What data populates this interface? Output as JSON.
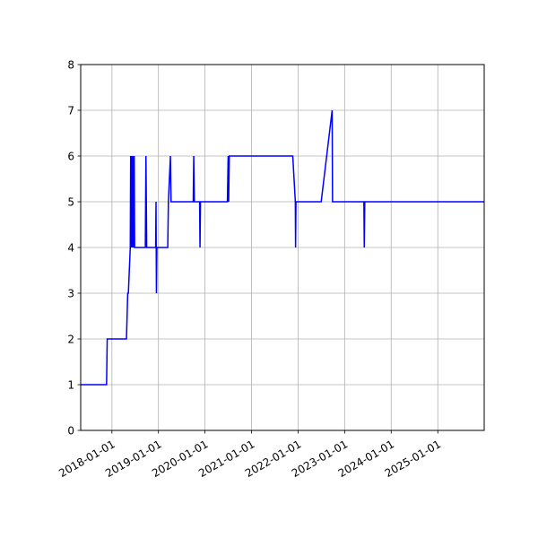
{
  "chart_data": {
    "type": "line",
    "title": "",
    "xlabel": "",
    "ylabel": "",
    "x_axis_type": "date",
    "xlim": [
      "2017-05-01",
      "2025-12-31"
    ],
    "ylim": [
      0,
      8
    ],
    "grid": true,
    "legend": "none",
    "line_color": "#0000ff",
    "grid_color": "#b0b0b0",
    "x_ticks": [
      {
        "value": "2018-01-01",
        "label": "2018-01-01"
      },
      {
        "value": "2019-01-01",
        "label": "2019-01-01"
      },
      {
        "value": "2020-01-01",
        "label": "2020-01-01"
      },
      {
        "value": "2021-01-01",
        "label": "2021-01-01"
      },
      {
        "value": "2022-01-01",
        "label": "2022-01-01"
      },
      {
        "value": "2023-01-01",
        "label": "2023-01-01"
      },
      {
        "value": "2024-01-01",
        "label": "2024-01-01"
      },
      {
        "value": "2025-01-01",
        "label": "2025-01-01"
      }
    ],
    "y_ticks": [
      {
        "value": 0,
        "label": "0"
      },
      {
        "value": 1,
        "label": "1"
      },
      {
        "value": 2,
        "label": "2"
      },
      {
        "value": 3,
        "label": "3"
      },
      {
        "value": 4,
        "label": "4"
      },
      {
        "value": 5,
        "label": "5"
      },
      {
        "value": 6,
        "label": "6"
      },
      {
        "value": 7,
        "label": "7"
      },
      {
        "value": 8,
        "label": "8"
      }
    ],
    "series": [
      {
        "color": "#0000ff",
        "x": [
          "2017-05-01",
          "2017-11-20",
          "2017-11-25",
          "2018-04-25",
          "2018-05-05",
          "2018-05-10",
          "2018-05-25",
          "2018-05-28",
          "2018-06-01",
          "2018-06-04",
          "2018-06-08",
          "2018-06-11",
          "2018-06-15",
          "2018-06-18",
          "2018-06-22",
          "2018-06-25",
          "2018-06-28",
          "2018-07-01",
          "2018-09-20",
          "2018-09-25",
          "2018-10-01",
          "2018-12-10",
          "2018-12-13",
          "2018-12-16",
          "2018-12-20",
          "2018-12-23",
          "2019-03-15",
          "2019-03-20",
          "2019-04-05",
          "2019-04-10",
          "2019-10-01",
          "2019-10-05",
          "2019-10-10",
          "2019-11-20",
          "2019-11-23",
          "2019-11-27",
          "2019-11-30",
          "2020-06-25",
          "2020-07-01",
          "2020-07-05",
          "2020-07-10",
          "2021-11-20",
          "2021-12-10",
          "2021-12-12",
          "2021-12-15",
          "2022-07-01",
          "2022-09-25",
          "2022-09-28",
          "2023-06-01",
          "2023-06-04",
          "2023-06-08",
          "2023-06-12",
          "2025-12-31"
        ],
        "y": [
          1,
          1,
          2,
          2,
          3,
          3,
          4,
          6,
          4,
          6,
          4,
          6,
          4,
          6,
          4,
          6,
          4,
          4,
          4,
          6,
          4,
          4,
          5,
          3,
          4,
          4,
          4,
          5,
          6,
          5,
          5,
          6,
          5,
          5,
          4,
          5,
          5,
          5,
          6,
          5,
          6,
          6,
          5,
          4,
          5,
          5,
          7,
          5,
          5,
          4,
          5,
          5,
          5
        ]
      }
    ]
  }
}
